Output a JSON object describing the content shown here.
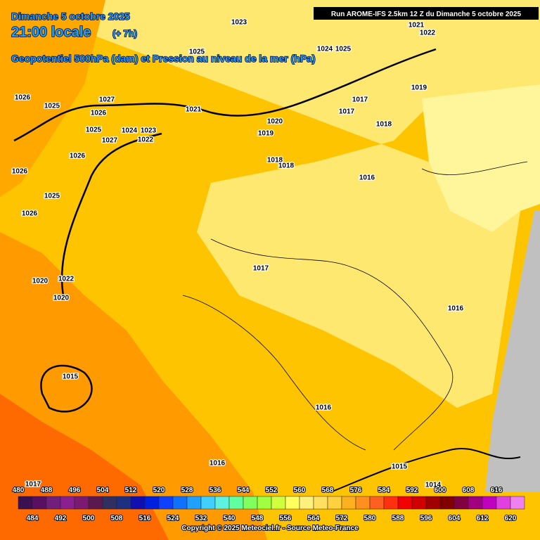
{
  "header": {
    "date": "Dimanche 5 octobre 2025",
    "time": "21:00 locale",
    "offset": "(+ 7h)",
    "subtitle": "Geopotentiel 500hPa (dam) et Pression au niveau de la mer (hPa)",
    "run": "Run AROME-IFS 2.5km 12 Z du Dimanche 5 octobre 2025"
  },
  "isobars": [
    1023,
    1021,
    1022,
    1025,
    1024,
    1025,
    1026,
    1025,
    1027,
    1026,
    1021,
    1025,
    1024,
    1023,
    1027,
    1022,
    1020,
    1019,
    1017,
    1017,
    1019,
    1018,
    1026,
    1018,
    1018,
    1016,
    1026,
    1025,
    1026,
    1017,
    1020,
    1022,
    1020,
    1016,
    1015,
    1016,
    1016,
    1015,
    1014,
    1017
  ],
  "legend": {
    "values": [
      480,
      484,
      488,
      492,
      496,
      500,
      504,
      508,
      512,
      516,
      520,
      524,
      528,
      532,
      536,
      540,
      544,
      548,
      552,
      556,
      560,
      564,
      568,
      572,
      576,
      580,
      584,
      588,
      592,
      596,
      600,
      604,
      608,
      612,
      616,
      620
    ],
    "colors": [
      "#3a1050",
      "#5a1060",
      "#70207a",
      "#8a2090",
      "#7a1a70",
      "#5a1a50",
      "#303060",
      "#203080",
      "#1010b0",
      "#0020e0",
      "#1040ff",
      "#1070ff",
      "#20a0ff",
      "#40d0ff",
      "#60f0e0",
      "#60ffa0",
      "#80ff60",
      "#a0ff40",
      "#d0ff40",
      "#ffff60",
      "#fff080",
      "#ffe060",
      "#ffd040",
      "#ffb020",
      "#ff9020",
      "#ff6020",
      "#ff3010",
      "#f00000",
      "#d00000",
      "#a00000",
      "#800000",
      "#800040",
      "#a00080",
      "#c000c0",
      "#e040e0",
      "#f080f0"
    ]
  },
  "copyright": "Copyright © 2025 Meteociel.fr - Source Meteo-France"
}
